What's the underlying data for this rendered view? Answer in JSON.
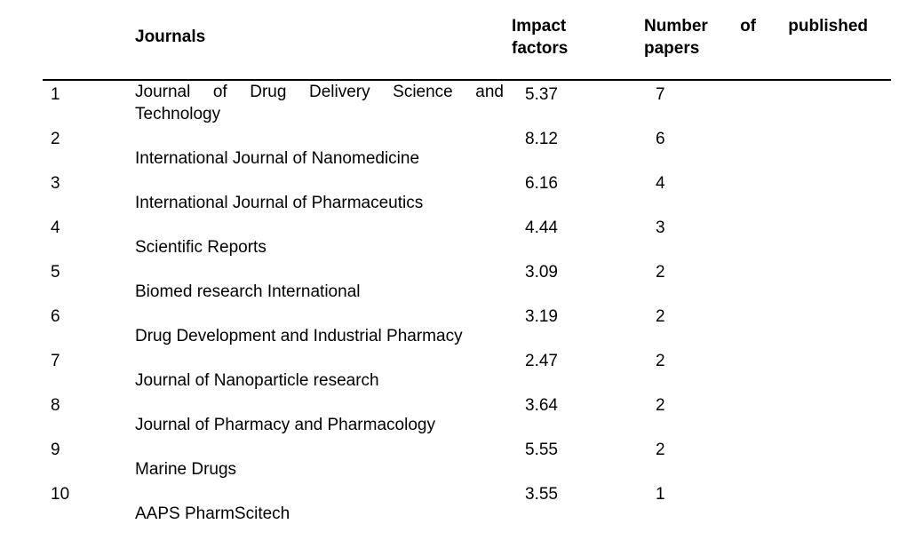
{
  "page": {
    "background_color": "#ffffff",
    "text_color": "#000000",
    "rule_color": "#000000"
  },
  "table": {
    "header": {
      "index": "",
      "journals": "Journals",
      "impact_factors": "Impact factors",
      "published_papers": "Number of published papers"
    },
    "rows": [
      {
        "index": "1",
        "journal": "Journal of Drug Delivery Science and Technology",
        "impact_factor": "5.37",
        "papers": "7"
      },
      {
        "index": "2",
        "journal": "International Journal of Nanomedicine",
        "impact_factor": "8.12",
        "papers": "6"
      },
      {
        "index": "3",
        "journal": "International Journal of Pharmaceutics",
        "impact_factor": "6.16",
        "papers": "4"
      },
      {
        "index": "4",
        "journal": "Scientific Reports",
        "impact_factor": "4.44",
        "papers": "3"
      },
      {
        "index": "5",
        "journal": "Biomed research International",
        "impact_factor": "3.09",
        "papers": "2"
      },
      {
        "index": "6",
        "journal": "Drug Development and Industrial Pharmacy",
        "impact_factor": "3.19",
        "papers": "2"
      },
      {
        "index": "7",
        "journal": "Journal of Nanoparticle research",
        "impact_factor": "2.47",
        "papers": "2"
      },
      {
        "index": "8",
        "journal": "Journal of Pharmacy and Pharmacology",
        "impact_factor": "3.64",
        "papers": "2"
      },
      {
        "index": "9",
        "journal": "Marine Drugs",
        "impact_factor": "5.55",
        "papers": "2"
      },
      {
        "index": "10",
        "journal": "AAPS PharmScitech",
        "impact_factor": "3.55",
        "papers": "1"
      }
    ]
  }
}
